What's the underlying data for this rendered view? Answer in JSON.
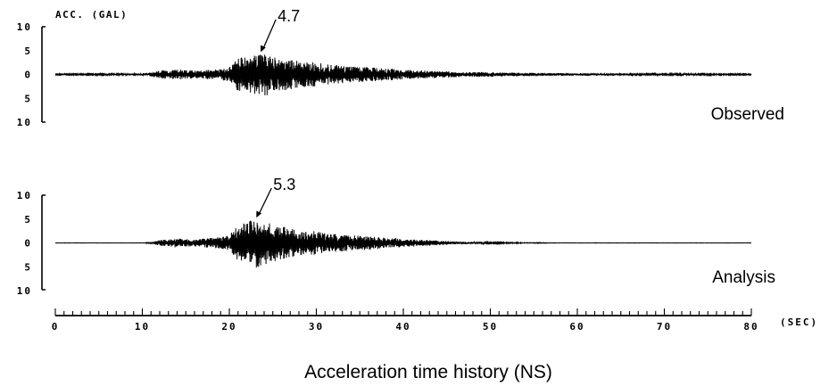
{
  "figure": {
    "caption": "Acceleration time history (NS)"
  },
  "chart_data": [
    {
      "type": "line",
      "title": "",
      "panel_label": "Observed",
      "ylabel": "ACC. (GAL)",
      "xlabel": "(SEC)",
      "xlim": [
        0,
        80
      ],
      "ylim": [
        -10,
        10
      ],
      "ytick_labels": [
        "10",
        "5",
        "0",
        "5",
        "10"
      ],
      "xtick_labels": [
        "0",
        "10",
        "20",
        "30",
        "40",
        "50",
        "60",
        "70",
        "80"
      ],
      "peak": {
        "t": 23.5,
        "value": 4.7,
        "label": "4.7"
      },
      "envelope": {
        "t": [
          0,
          10,
          11,
          12,
          13,
          14,
          15,
          16,
          17,
          18,
          19,
          20,
          20.5,
          21,
          22,
          23,
          24,
          25,
          26,
          27,
          28,
          29,
          30,
          31,
          32,
          33,
          34,
          35,
          36,
          37,
          38,
          39,
          40,
          42,
          44,
          46,
          48,
          50,
          52,
          54,
          56,
          58,
          60,
          65,
          70,
          75,
          80
        ],
        "amp": [
          0.1,
          0.2,
          0.4,
          0.8,
          0.9,
          1.0,
          1.0,
          0.8,
          0.9,
          1.0,
          1.2,
          1.5,
          2.5,
          3.6,
          3.6,
          4.2,
          4.7,
          3.8,
          3.5,
          3.2,
          2.8,
          2.5,
          2.6,
          2.2,
          2.0,
          1.9,
          1.7,
          1.6,
          1.5,
          1.4,
          1.3,
          1.2,
          1.0,
          0.9,
          0.7,
          0.6,
          0.5,
          0.5,
          0.4,
          0.35,
          0.3,
          0.3,
          0.25,
          0.2,
          0.15,
          0.15,
          0.1
        ]
      }
    },
    {
      "type": "line",
      "title": "",
      "panel_label": "Analysis",
      "ylabel": "",
      "xlabel": "(SEC)",
      "xlim": [
        0,
        80
      ],
      "ylim": [
        -10,
        10
      ],
      "ytick_labels": [
        "10",
        "5",
        "0",
        "5",
        "10"
      ],
      "xtick_labels": [
        "0",
        "10",
        "20",
        "30",
        "40",
        "50",
        "60",
        "70",
        "80"
      ],
      "peak": {
        "t": 23.0,
        "value": 5.3,
        "label": "5.3"
      },
      "envelope": {
        "t": [
          0,
          10,
          11,
          12,
          13,
          14,
          15,
          16,
          17,
          18,
          19,
          20,
          20.5,
          21,
          22,
          23,
          24,
          25,
          26,
          27,
          28,
          29,
          30,
          31,
          32,
          33,
          34,
          35,
          36,
          37,
          38,
          39,
          40,
          42,
          44,
          46,
          48,
          50,
          52,
          54,
          56,
          58,
          60,
          65,
          70,
          75,
          80
        ],
        "amp": [
          0.0,
          0.0,
          0.1,
          0.6,
          0.8,
          1.0,
          0.8,
          0.7,
          0.9,
          1.1,
          1.3,
          1.5,
          2.8,
          3.8,
          4.3,
          5.3,
          4.6,
          3.9,
          3.6,
          3.0,
          2.7,
          2.4,
          2.5,
          2.1,
          1.9,
          1.8,
          1.6,
          1.5,
          1.4,
          1.3,
          1.1,
          1.0,
          0.9,
          0.7,
          0.5,
          0.3,
          0.2,
          0.15,
          0.1,
          0.05,
          0.05,
          0.0,
          0.0,
          0.0,
          0.0,
          0.0,
          0.0
        ]
      }
    }
  ]
}
